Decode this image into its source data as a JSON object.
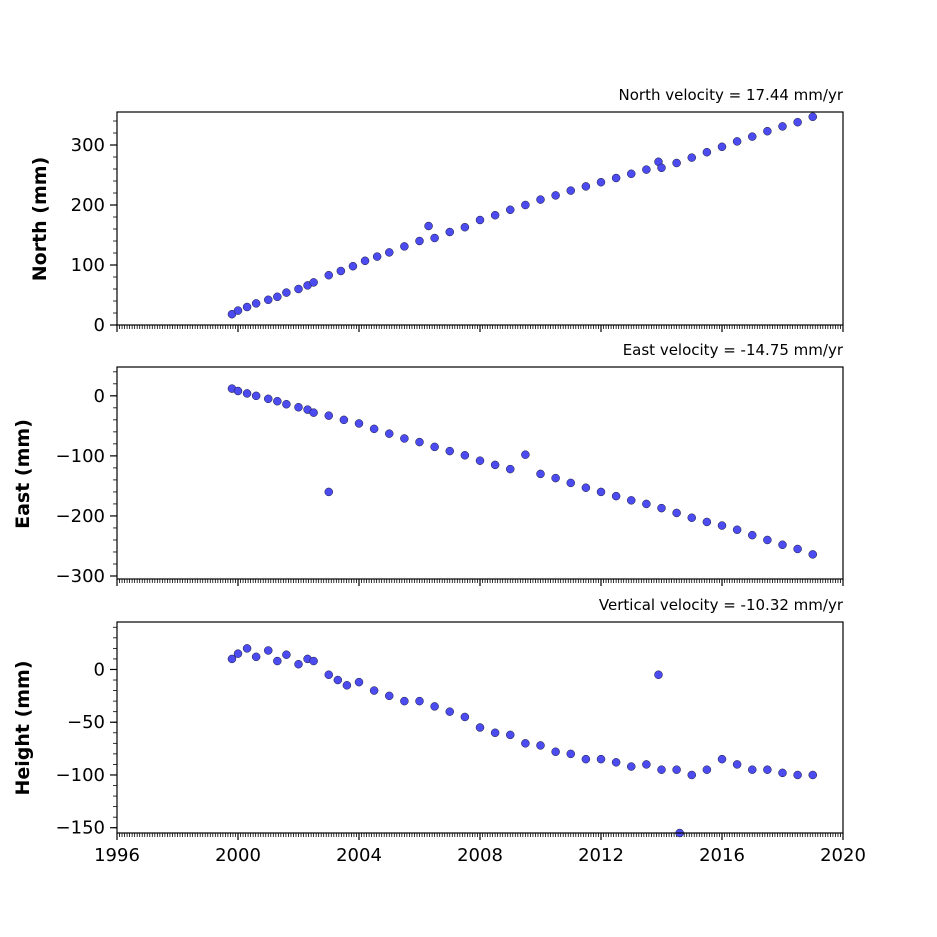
{
  "chart_data": [
    {
      "type": "scatter",
      "title": "North velocity = 17.44 mm/yr",
      "ylabel": "North (mm)",
      "xlim": [
        1996,
        2020
      ],
      "ylim": [
        0,
        355
      ],
      "yticks": [
        0,
        100,
        200,
        300
      ],
      "xticks": [
        1996,
        2000,
        2004,
        2008,
        2012,
        2016,
        2020
      ],
      "point_color": "#4b4bf0",
      "show_xtick_labels": false,
      "series": [
        {
          "x": [
            1999.8,
            2000.0,
            2000.3,
            2000.6,
            2001.0,
            2001.3,
            2001.6,
            2002.0,
            2002.3,
            2002.5,
            2003.0,
            2003.4,
            2003.8,
            2004.2,
            2004.6,
            2005.0,
            2005.5,
            2006.0,
            2006.3,
            2006.5,
            2007.0,
            2007.5,
            2008.0,
            2008.5,
            2009.0,
            2009.5,
            2010.0,
            2010.5,
            2011.0,
            2011.5,
            2012.0,
            2012.5,
            2013.0,
            2013.5,
            2013.9,
            2014.0,
            2014.5,
            2015.0,
            2015.5,
            2016.0,
            2016.5,
            2017.0,
            2017.5,
            2018.0,
            2018.5,
            2019.0
          ],
          "y": [
            18,
            24,
            30,
            36,
            42,
            47,
            54,
            60,
            66,
            71,
            83,
            90,
            98,
            107,
            114,
            121,
            131,
            140,
            165,
            145,
            155,
            163,
            175,
            183,
            192,
            200,
            209,
            216,
            224,
            231,
            238,
            245,
            252,
            259,
            272,
            262,
            270,
            279,
            288,
            297,
            306,
            314,
            323,
            331,
            338,
            347
          ]
        }
      ]
    },
    {
      "type": "scatter",
      "title": "East velocity = -14.75 mm/yr",
      "ylabel": "East (mm)",
      "xlim": [
        1996,
        2020
      ],
      "ylim": [
        -305,
        48
      ],
      "yticks": [
        0,
        -100,
        -200,
        -300
      ],
      "ytick_labels": [
        "0",
        "−100",
        "−200",
        "−300"
      ],
      "xticks": [
        1996,
        2000,
        2004,
        2008,
        2012,
        2016,
        2020
      ],
      "point_color": "#4b4bf0",
      "show_xtick_labels": false,
      "series": [
        {
          "x": [
            1999.8,
            2000.0,
            2000.3,
            2000.6,
            2001.0,
            2001.3,
            2001.6,
            2002.0,
            2002.3,
            2002.5,
            2003.0,
            2003.0,
            2003.5,
            2004.0,
            2004.5,
            2005.0,
            2005.5,
            2006.0,
            2006.5,
            2007.0,
            2007.5,
            2008.0,
            2008.5,
            2009.0,
            2009.5,
            2010.0,
            2010.5,
            2011.0,
            2011.5,
            2012.0,
            2012.5,
            2013.0,
            2013.5,
            2014.0,
            2014.5,
            2015.0,
            2015.5,
            2016.0,
            2016.5,
            2017.0,
            2017.5,
            2018.0,
            2018.5,
            2019.0
          ],
          "y": [
            12,
            8,
            4,
            0,
            -5,
            -9,
            -14,
            -19,
            -23,
            -28,
            -33,
            -160,
            -40,
            -46,
            -55,
            -63,
            -71,
            -77,
            -85,
            -92,
            -99,
            -108,
            -115,
            -122,
            -98,
            -130,
            -137,
            -145,
            -153,
            -160,
            -167,
            -174,
            -180,
            -187,
            -195,
            -203,
            -210,
            -216,
            -223,
            -232,
            -240,
            -248,
            -255,
            -264
          ]
        }
      ]
    },
    {
      "type": "scatter",
      "title": "Vertical velocity = -10.32 mm/yr",
      "ylabel": "Height (mm)",
      "xlim": [
        1996,
        2020
      ],
      "ylim": [
        -155,
        45
      ],
      "yticks": [
        0,
        -50,
        -100,
        -150
      ],
      "ytick_labels": [
        "0",
        "−50",
        "−100",
        "−150"
      ],
      "xticks": [
        1996,
        2000,
        2004,
        2008,
        2012,
        2016,
        2020
      ],
      "xtick_labels": [
        "1996",
        "2000",
        "2004",
        "2008",
        "2012",
        "2016",
        "2020"
      ],
      "point_color": "#4b4bf0",
      "show_xtick_labels": true,
      "series": [
        {
          "x": [
            1999.8,
            2000.0,
            2000.3,
            2000.6,
            2001.0,
            2001.3,
            2001.6,
            2002.0,
            2002.3,
            2002.5,
            2003.0,
            2003.3,
            2003.6,
            2004.0,
            2004.5,
            2005.0,
            2005.5,
            2006.0,
            2006.5,
            2007.0,
            2007.5,
            2008.0,
            2008.5,
            2009.0,
            2009.5,
            2010.0,
            2010.5,
            2011.0,
            2011.5,
            2012.0,
            2012.5,
            2013.0,
            2013.5,
            2013.9,
            2014.0,
            2014.5,
            2014.6,
            2015.0,
            2015.5,
            2016.0,
            2016.5,
            2017.0,
            2017.5,
            2018.0,
            2018.5,
            2019.0
          ],
          "y": [
            10,
            15,
            20,
            12,
            18,
            8,
            14,
            5,
            10,
            8,
            -5,
            -10,
            -15,
            -12,
            -20,
            -25,
            -30,
            -30,
            -35,
            -40,
            -45,
            -55,
            -60,
            -62,
            -70,
            -72,
            -78,
            -80,
            -85,
            -85,
            -88,
            -92,
            -90,
            -5,
            -95,
            -95,
            -155,
            -100,
            -95,
            -85,
            -90,
            -95,
            -95,
            -98,
            -100,
            -100
          ]
        }
      ]
    }
  ]
}
